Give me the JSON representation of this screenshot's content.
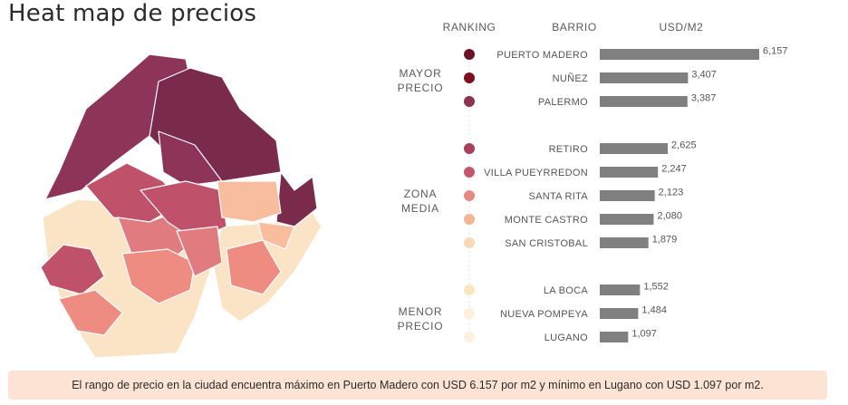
{
  "title": "Heat map de precios",
  "headers": {
    "ranking": "RANKING",
    "barrio": "BARRIO",
    "usd": "USD/M2"
  },
  "groups": [
    {
      "lines": [
        "MAYOR",
        "PRECIO"
      ]
    },
    {
      "lines": [
        "ZONA",
        "MEDIA"
      ]
    },
    {
      "lines": [
        "MENOR",
        "PRECIO"
      ]
    }
  ],
  "chart_data": {
    "type": "bar",
    "title": "Heat map de precios",
    "xlabel": "USD/M2",
    "ylabel": "BARRIO",
    "orientation": "horizontal",
    "categories": [
      "PUERTO MADERO",
      "NUÑEZ",
      "PALERMO",
      "RETIRO",
      "VILLA PUEYRREDON",
      "SANTA RITA",
      "MONTE CASTRO",
      "SAN CRISTOBAL",
      "LA BOCA",
      "NUEVA POMPEYA",
      "LUGANO"
    ],
    "values": [
      6157,
      3407,
      3387,
      2625,
      2247,
      2123,
      2080,
      1879,
      1552,
      1484,
      1097
    ],
    "labels": [
      "6,157",
      "3,407",
      "3,387",
      "2,625",
      "2,247",
      "2,123",
      "2,080",
      "1,879",
      "1,552",
      "1,484",
      "1,097"
    ],
    "group_index": [
      0,
      0,
      0,
      1,
      1,
      1,
      1,
      1,
      2,
      2,
      2
    ],
    "dot_colors": [
      "#6b1428",
      "#7c0f1c",
      "#8a3352",
      "#a8405a",
      "#c1566c",
      "#e48a86",
      "#f5b495",
      "#f9d9b5",
      "#fbe6c0",
      "#fdf1dd",
      "#fcf1de"
    ],
    "bar_color": "#808080",
    "xlim": [
      0,
      6157
    ]
  },
  "map_palette": {
    "dark": "#7a2a4a",
    "purple": "#8e3458",
    "red": "#c0516a",
    "pink": "#e07c80",
    "salmon": "#ee8c82",
    "peach": "#f7bd9c",
    "cream": "#fbe3c6"
  },
  "note": "El rango de precio en la ciudad encuentra máximo en Puerto Madero con USD 6.157 por m2 y mínimo en Lugano con USD 1.097 por m2."
}
